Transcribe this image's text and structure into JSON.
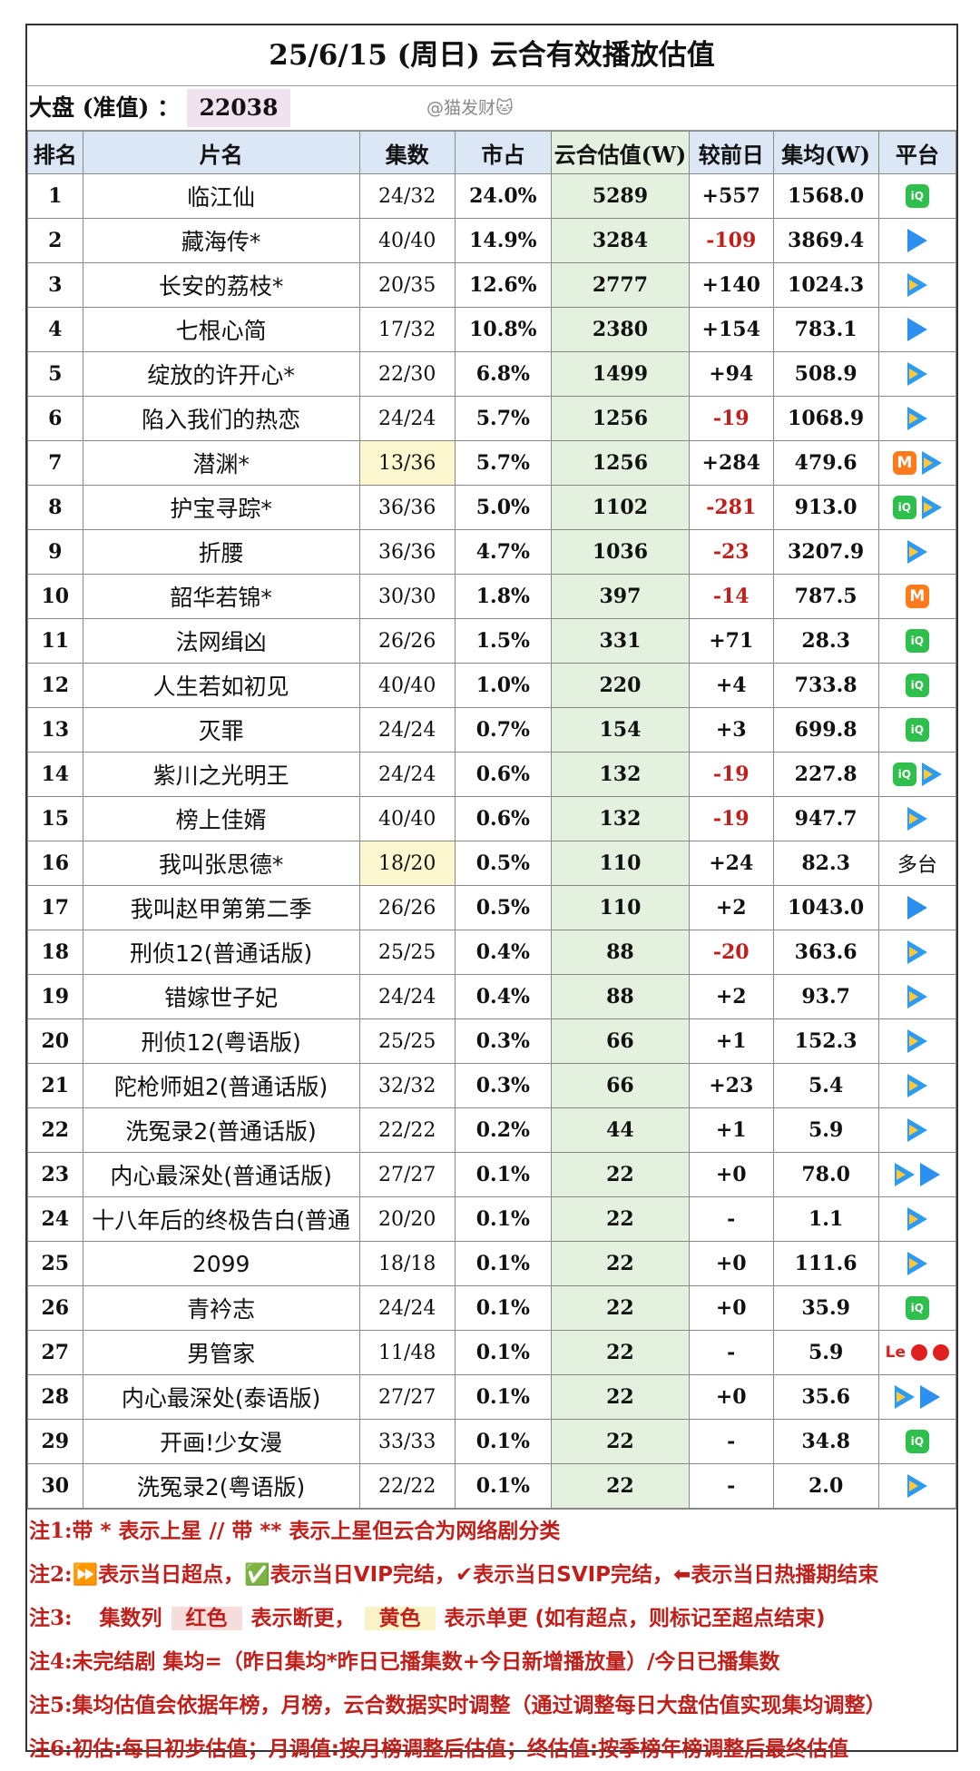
{
  "title": "25/6/15 (周日) 云合有效播放估值",
  "market": {
    "label": "大盘 (准值) ：",
    "value": "22038",
    "watermark": "@猫发财🐱"
  },
  "columns": [
    "排名",
    "片名",
    "集数",
    "市占",
    "云合估值(W)",
    "较前日",
    "集均(W)",
    "平台"
  ],
  "rows": [
    {
      "rank": "1",
      "name": "临江仙",
      "eps": "24/32",
      "share": "24.0%",
      "est": "5289",
      "change": "+557",
      "avg": "1568.0",
      "platforms": [
        "iqiyi"
      ]
    },
    {
      "rank": "2",
      "name": "藏海传*",
      "eps": "40/40",
      "share": "14.9%",
      "est": "3284",
      "change": "-109",
      "avg": "3869.4",
      "platforms": [
        "youku"
      ]
    },
    {
      "rank": "3",
      "name": "长安的荔枝*",
      "eps": "20/35",
      "share": "12.6%",
      "est": "2777",
      "change": "+140",
      "avg": "1024.3",
      "platforms": [
        "tencent"
      ]
    },
    {
      "rank": "4",
      "name": "七根心简",
      "eps": "17/32",
      "share": "10.8%",
      "est": "2380",
      "change": "+154",
      "avg": "783.1",
      "platforms": [
        "youku"
      ]
    },
    {
      "rank": "5",
      "name": "绽放的许开心*",
      "eps": "22/30",
      "share": "6.8%",
      "est": "1499",
      "change": "+94",
      "avg": "508.9",
      "platforms": [
        "tencent"
      ]
    },
    {
      "rank": "6",
      "name": "陷入我们的热恋",
      "eps": "24/24",
      "share": "5.7%",
      "est": "1256",
      "change": "-19",
      "avg": "1068.9",
      "platforms": [
        "tencent"
      ]
    },
    {
      "rank": "7",
      "name": "潜渊*",
      "eps": "13/36",
      "share": "5.7%",
      "est": "1256",
      "change": "+284",
      "avg": "479.6",
      "platforms": [
        "mango",
        "tencent"
      ],
      "eps_highlight": "yellow"
    },
    {
      "rank": "8",
      "name": "护宝寻踪*",
      "eps": "36/36",
      "share": "5.0%",
      "est": "1102",
      "change": "-281",
      "avg": "913.0",
      "platforms": [
        "iqiyi",
        "tencent"
      ]
    },
    {
      "rank": "9",
      "name": "折腰",
      "eps": "36/36",
      "share": "4.7%",
      "est": "1036",
      "change": "-23",
      "avg": "3207.9",
      "platforms": [
        "tencent"
      ]
    },
    {
      "rank": "10",
      "name": "韶华若锦*",
      "eps": "30/30",
      "share": "1.8%",
      "est": "397",
      "change": "-14",
      "avg": "787.5",
      "platforms": [
        "mango"
      ]
    },
    {
      "rank": "11",
      "name": "法网缉凶",
      "eps": "26/26",
      "share": "1.5%",
      "est": "331",
      "change": "+71",
      "avg": "28.3",
      "platforms": [
        "iqiyi"
      ]
    },
    {
      "rank": "12",
      "name": "人生若如初见",
      "eps": "40/40",
      "share": "1.0%",
      "est": "220",
      "change": "+4",
      "avg": "733.8",
      "platforms": [
        "iqiyi"
      ]
    },
    {
      "rank": "13",
      "name": "灭罪",
      "eps": "24/24",
      "share": "0.7%",
      "est": "154",
      "change": "+3",
      "avg": "699.8",
      "platforms": [
        "iqiyi"
      ]
    },
    {
      "rank": "14",
      "name": "紫川之光明王",
      "eps": "24/24",
      "share": "0.6%",
      "est": "132",
      "change": "-19",
      "avg": "227.8",
      "platforms": [
        "iqiyi",
        "tencent"
      ]
    },
    {
      "rank": "15",
      "name": "榜上佳婿",
      "eps": "40/40",
      "share": "0.6%",
      "est": "132",
      "change": "-19",
      "avg": "947.7",
      "platforms": [
        "tencent"
      ]
    },
    {
      "rank": "16",
      "name": "我叫张思德*",
      "eps": "18/20",
      "share": "0.5%",
      "est": "110",
      "change": "+24",
      "avg": "82.3",
      "platforms": [
        "multi"
      ],
      "multi_label": "多台",
      "eps_highlight": "yellow"
    },
    {
      "rank": "17",
      "name": "我叫赵甲第第二季",
      "eps": "26/26",
      "share": "0.5%",
      "est": "110",
      "change": "+2",
      "avg": "1043.0",
      "platforms": [
        "youku"
      ]
    },
    {
      "rank": "18",
      "name": "刑侦12(普通话版)",
      "eps": "25/25",
      "share": "0.4%",
      "est": "88",
      "change": "-20",
      "avg": "363.6",
      "platforms": [
        "tencent"
      ]
    },
    {
      "rank": "19",
      "name": "错嫁世子妃",
      "eps": "24/24",
      "share": "0.4%",
      "est": "88",
      "change": "+2",
      "avg": "93.7",
      "platforms": [
        "tencent"
      ]
    },
    {
      "rank": "20",
      "name": "刑侦12(粤语版)",
      "eps": "25/25",
      "share": "0.3%",
      "est": "66",
      "change": "+1",
      "avg": "152.3",
      "platforms": [
        "tencent"
      ]
    },
    {
      "rank": "21",
      "name": "陀枪师姐2(普通话版)",
      "eps": "32/32",
      "share": "0.3%",
      "est": "66",
      "change": "+23",
      "avg": "5.4",
      "platforms": [
        "tencent"
      ]
    },
    {
      "rank": "22",
      "name": "洗冤录2(普通话版)",
      "eps": "22/22",
      "share": "0.2%",
      "est": "44",
      "change": "+1",
      "avg": "5.9",
      "platforms": [
        "tencent"
      ]
    },
    {
      "rank": "23",
      "name": "内心最深处(普通话版)",
      "eps": "27/27",
      "share": "0.1%",
      "est": "22",
      "change": "+0",
      "avg": "78.0",
      "platforms": [
        "tencent",
        "youku"
      ]
    },
    {
      "rank": "24",
      "name": "十八年后的终极告白(普通",
      "eps": "20/20",
      "share": "0.1%",
      "est": "22",
      "change": "-",
      "avg": "1.1",
      "platforms": [
        "tencent"
      ]
    },
    {
      "rank": "25",
      "name": "2099",
      "eps": "18/18",
      "share": "0.1%",
      "est": "22",
      "change": "+0",
      "avg": "111.6",
      "platforms": [
        "tencent"
      ]
    },
    {
      "rank": "26",
      "name": "青衿志",
      "eps": "24/24",
      "share": "0.1%",
      "est": "22",
      "change": "+0",
      "avg": "35.9",
      "platforms": [
        "iqiyi"
      ]
    },
    {
      "rank": "27",
      "name": "男管家",
      "eps": "11/48",
      "share": "0.1%",
      "est": "22",
      "change": "-",
      "avg": "5.9",
      "platforms": [
        "letv",
        "red",
        "red"
      ],
      "letv_label": "Le"
    },
    {
      "rank": "28",
      "name": "内心最深处(泰语版)",
      "eps": "27/27",
      "share": "0.1%",
      "est": "22",
      "change": "+0",
      "avg": "35.6",
      "platforms": [
        "tencent",
        "youku"
      ]
    },
    {
      "rank": "29",
      "name": "开画!少女漫",
      "eps": "33/33",
      "share": "0.1%",
      "est": "22",
      "change": "-",
      "avg": "34.8",
      "platforms": [
        "iqiyi"
      ]
    },
    {
      "rank": "30",
      "name": "洗冤录2(粤语版)",
      "eps": "22/22",
      "share": "0.1%",
      "est": "22",
      "change": "-",
      "avg": "2.0",
      "platforms": [
        "tencent"
      ]
    }
  ],
  "notes": [
    {
      "key": "注1:",
      "text": "带 * 表示上星 // 带 ** 表示上星但云合为网络剧分类"
    },
    {
      "key": "注2:",
      "text": "⏩表示当日超点，✅表示当日VIP完结，✔表示当日SVIP完结，⬅表示当日热播期结束"
    },
    {
      "key": "注3:",
      "parts": [
        "集数列",
        "红色",
        "表示断更，",
        "黄色",
        "表示单更 (如有超点，则标记至超点结束)"
      ]
    },
    {
      "key": "注4:",
      "text": "未完结剧 集均=（昨日集均*昨日已播集数+今日新增播放量）/今日已播集数"
    },
    {
      "key": "注5:",
      "text": "集均估值会依据年榜，月榜，云合数据实时调整（通过调整每日大盘估值实现集均调整）"
    },
    {
      "key": "注6:",
      "text": "初估:每日初步估值；月调值:按月榜调整后估值；终估值:按季榜年榜调整后最终估值"
    }
  ]
}
